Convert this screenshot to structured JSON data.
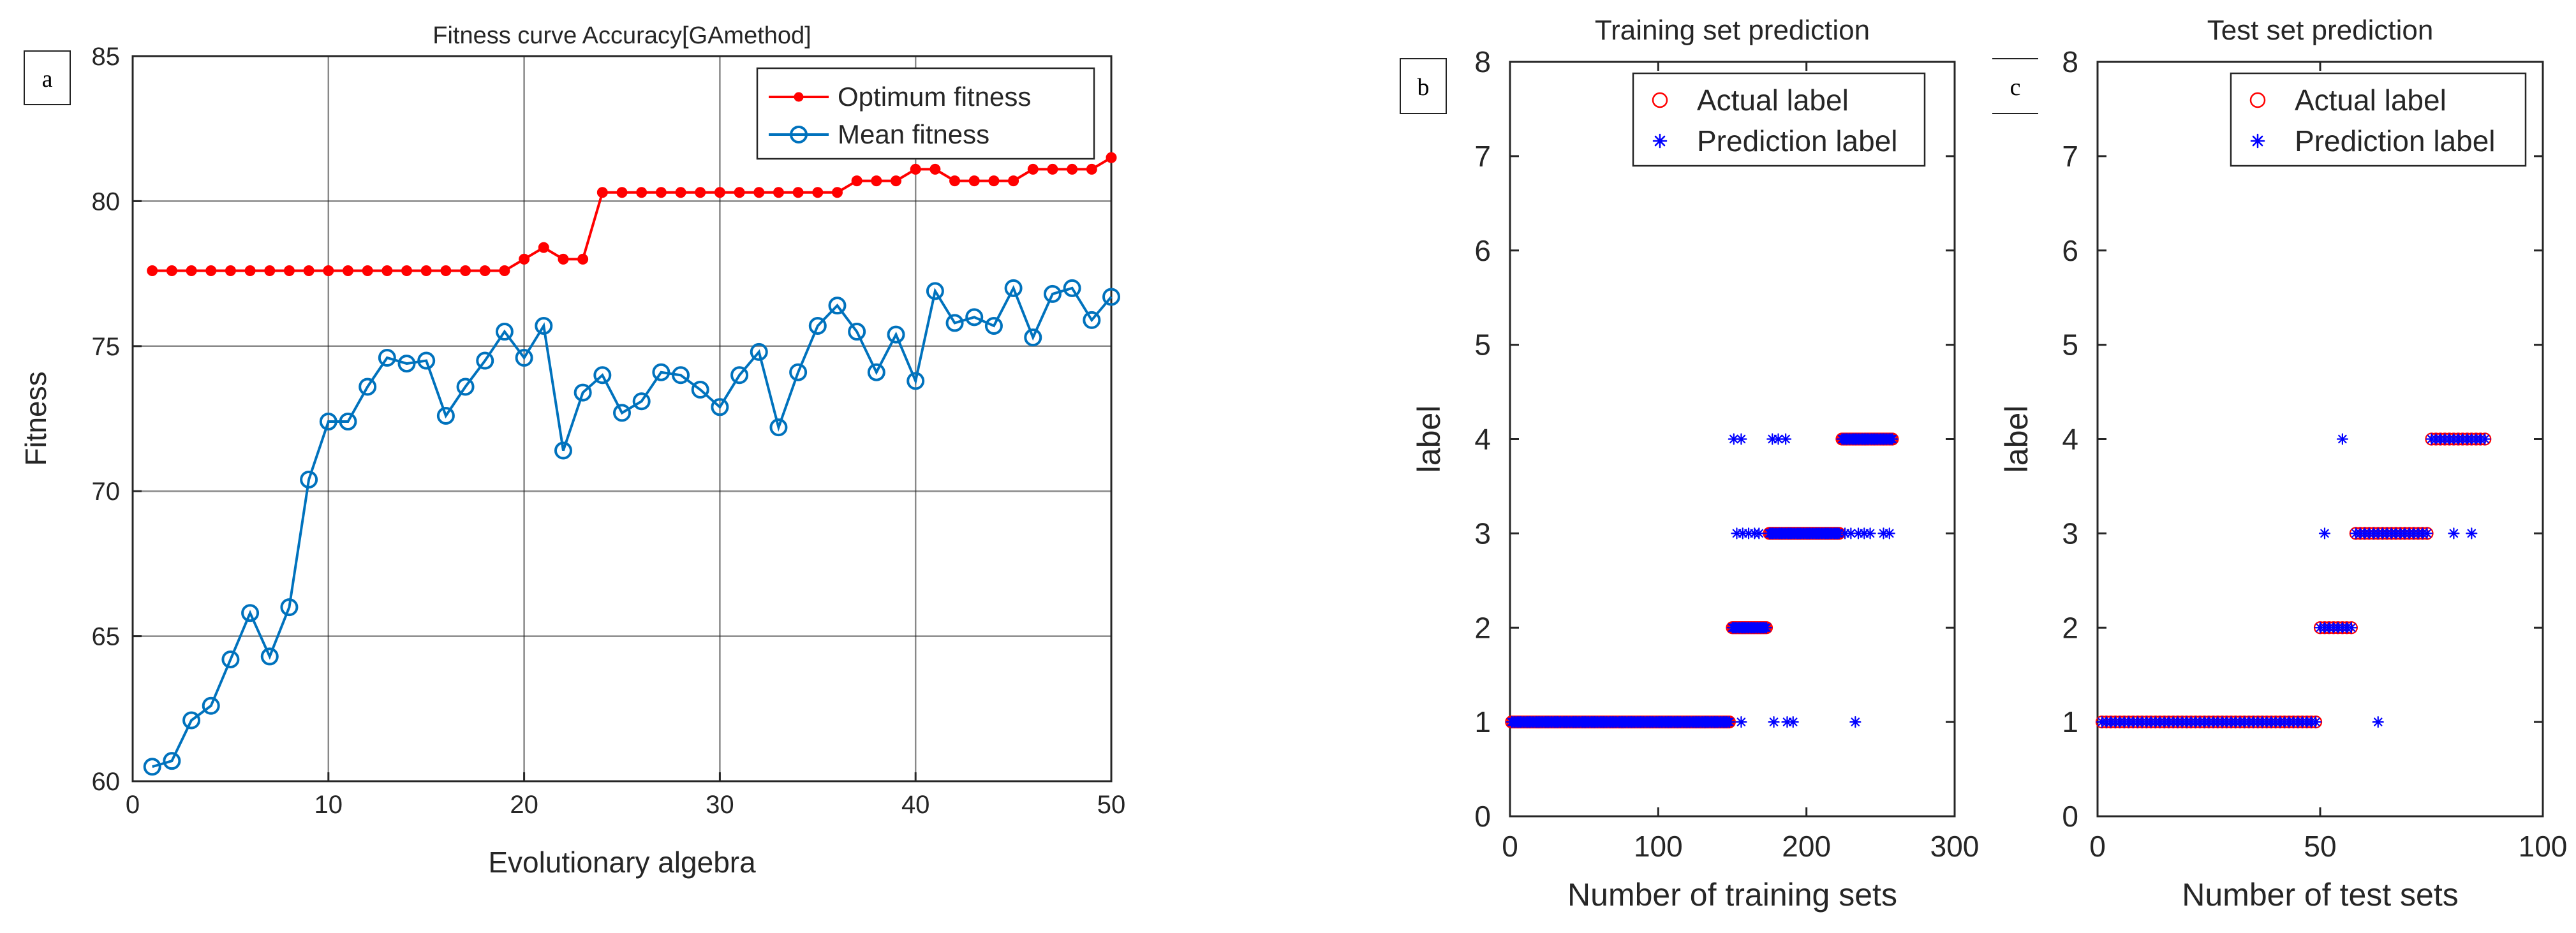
{
  "chart_data": [
    {
      "panel": "a",
      "type": "line",
      "title": "Fitness curve Accuracy[GAmethod]",
      "xlabel": "Evolutionary algebra",
      "ylabel": "Fitness",
      "xlim": [
        0,
        50
      ],
      "ylim": [
        60,
        85
      ],
      "xticks": [
        0,
        10,
        20,
        30,
        40,
        50
      ],
      "yticks": [
        60,
        65,
        70,
        75,
        80,
        85
      ],
      "grid": true,
      "legend_position": "top-right",
      "x": [
        1,
        2,
        3,
        4,
        5,
        6,
        7,
        8,
        9,
        10,
        11,
        12,
        13,
        14,
        15,
        16,
        17,
        18,
        19,
        20,
        21,
        22,
        23,
        24,
        25,
        26,
        27,
        28,
        29,
        30,
        31,
        32,
        33,
        34,
        35,
        36,
        37,
        38,
        39,
        40,
        41,
        42,
        43,
        44,
        45,
        46,
        47,
        48,
        49,
        50
      ],
      "series": [
        {
          "name": "Optimum fitness",
          "color": "#ff0000",
          "marker": "dot",
          "values": [
            77.6,
            77.6,
            77.6,
            77.6,
            77.6,
            77.6,
            77.6,
            77.6,
            77.6,
            77.6,
            77.6,
            77.6,
            77.6,
            77.6,
            77.6,
            77.6,
            77.6,
            77.6,
            77.6,
            78.0,
            78.4,
            78.0,
            78.0,
            80.3,
            80.3,
            80.3,
            80.3,
            80.3,
            80.3,
            80.3,
            80.3,
            80.3,
            80.3,
            80.3,
            80.3,
            80.3,
            80.7,
            80.7,
            80.7,
            81.1,
            81.1,
            80.7,
            80.7,
            80.7,
            80.7,
            81.1,
            81.1,
            81.1,
            81.1,
            81.5
          ]
        },
        {
          "name": "Mean fitness",
          "color": "#0072bd",
          "marker": "circle",
          "values": [
            60.5,
            60.7,
            62.1,
            62.6,
            64.2,
            65.8,
            64.3,
            66.0,
            70.4,
            72.4,
            72.4,
            73.6,
            74.6,
            74.4,
            74.5,
            72.6,
            73.6,
            74.5,
            75.5,
            74.6,
            75.7,
            71.4,
            73.4,
            74.0,
            72.7,
            73.1,
            74.1,
            74.0,
            73.5,
            72.9,
            74.0,
            74.8,
            72.2,
            74.1,
            75.7,
            76.4,
            75.5,
            74.1,
            75.4,
            73.8,
            76.9,
            75.8,
            76.0,
            75.7,
            77.0,
            75.3,
            76.8,
            77.0,
            75.9,
            76.7
          ]
        }
      ]
    },
    {
      "panel": "b",
      "type": "scatter",
      "title": "Training set prediction",
      "xlabel": "Number of training sets",
      "ylabel": "label",
      "xlim": [
        0,
        300
      ],
      "ylim": [
        0,
        8
      ],
      "xticks": [
        0,
        100,
        200,
        300
      ],
      "yticks": [
        0,
        1,
        2,
        3,
        4,
        5,
        6,
        7,
        8
      ],
      "grid": false,
      "legend_position": "top-right",
      "series": [
        {
          "name": "Actual label",
          "color": "#ff0000",
          "marker": "circle",
          "segments": [
            {
              "label": 1,
              "from": 1,
              "to": 148
            },
            {
              "label": 2,
              "from": 150,
              "to": 173
            },
            {
              "label": 3,
              "from": 175,
              "to": 222
            },
            {
              "label": 4,
              "from": 224,
              "to": 258
            }
          ]
        },
        {
          "name": "Prediction label",
          "color": "#0000ff",
          "marker": "asterisk",
          "segments": [
            {
              "label": 1,
              "from": 1,
              "to": 148
            },
            {
              "label": 2,
              "from": 150,
              "to": 173
            },
            {
              "label": 3,
              "from": 175,
              "to": 222
            },
            {
              "label": 4,
              "from": 224,
              "to": 258
            }
          ],
          "outliers": [
            {
              "x": 156,
              "y": 1
            },
            {
              "x": 178,
              "y": 1
            },
            {
              "x": 187,
              "y": 1
            },
            {
              "x": 191,
              "y": 1
            },
            {
              "x": 233,
              "y": 1
            },
            {
              "x": 153,
              "y": 3
            },
            {
              "x": 157,
              "y": 3
            },
            {
              "x": 161,
              "y": 3
            },
            {
              "x": 165,
              "y": 3
            },
            {
              "x": 168,
              "y": 3
            },
            {
              "x": 226,
              "y": 3
            },
            {
              "x": 230,
              "y": 3
            },
            {
              "x": 235,
              "y": 3
            },
            {
              "x": 239,
              "y": 3
            },
            {
              "x": 243,
              "y": 3
            },
            {
              "x": 252,
              "y": 3
            },
            {
              "x": 256,
              "y": 3
            },
            {
              "x": 151,
              "y": 4
            },
            {
              "x": 156,
              "y": 4
            },
            {
              "x": 177,
              "y": 4
            },
            {
              "x": 181,
              "y": 4
            },
            {
              "x": 186,
              "y": 4
            }
          ]
        }
      ]
    },
    {
      "panel": "c",
      "type": "scatter",
      "title": "Test set prediction",
      "xlabel": "Number of test sets",
      "ylabel": "label",
      "xlim": [
        0,
        100
      ],
      "ylim": [
        0,
        8
      ],
      "xticks": [
        0,
        50,
        100
      ],
      "yticks": [
        0,
        1,
        2,
        3,
        4,
        5,
        6,
        7,
        8
      ],
      "grid": false,
      "legend_position": "top-right",
      "series": [
        {
          "name": "Actual label",
          "color": "#ff0000",
          "marker": "circle",
          "segments": [
            {
              "label": 1,
              "from": 1,
              "to": 49
            },
            {
              "label": 2,
              "from": 50,
              "to": 57
            },
            {
              "label": 3,
              "from": 58,
              "to": 74
            },
            {
              "label": 4,
              "from": 75,
              "to": 87
            }
          ]
        },
        {
          "name": "Prediction label",
          "color": "#0000ff",
          "marker": "asterisk",
          "segments": [
            {
              "label": 1,
              "from": 1,
              "to": 49
            },
            {
              "label": 2,
              "from": 50,
              "to": 57
            },
            {
              "label": 3,
              "from": 58,
              "to": 74
            },
            {
              "label": 4,
              "from": 75,
              "to": 87
            }
          ],
          "outliers": [
            {
              "x": 63,
              "y": 1
            },
            {
              "x": 51,
              "y": 3
            },
            {
              "x": 80,
              "y": 3
            },
            {
              "x": 84,
              "y": 3
            },
            {
              "x": 55,
              "y": 4
            }
          ]
        }
      ]
    }
  ]
}
